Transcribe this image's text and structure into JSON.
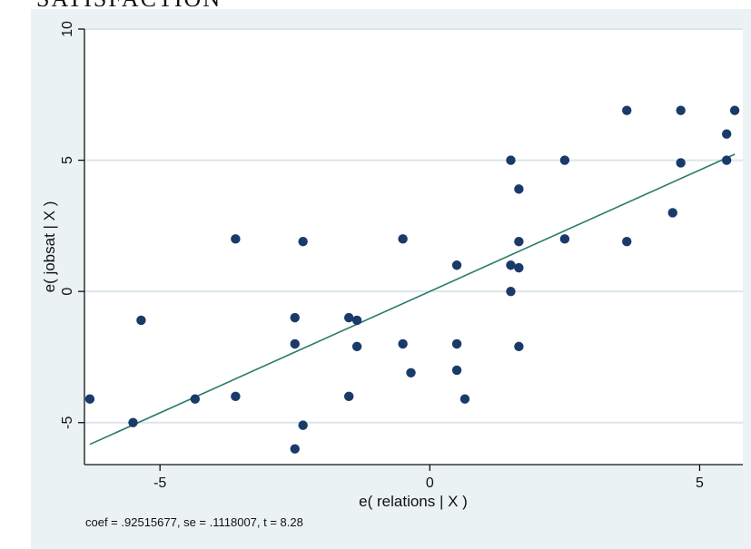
{
  "top_caption": "SATISFACTION",
  "note": "coef = .92515677, se = .1118007, t = 8.28",
  "colors": {
    "panel": "#eaf2f3",
    "plot_bg": "#ffffff",
    "grid": "#dce6ea",
    "marker": "#1a3a6a",
    "fit_line": "#2a7a68"
  },
  "chart_data": {
    "type": "scatter",
    "title": "",
    "xlabel": "e( relations | X )",
    "ylabel": "e( jobsat | X )",
    "xlim": [
      -6.4,
      5.8
    ],
    "ylim": [
      -6.6,
      10
    ],
    "x_ticks": [
      -5,
      0,
      5
    ],
    "y_ticks": [
      -5,
      0,
      5,
      10
    ],
    "x_tick_labels": [
      "-5",
      "0",
      "5"
    ],
    "y_tick_labels": [
      "-5",
      "0",
      "5",
      "10"
    ],
    "grid": "horizontal",
    "series": [
      {
        "points": [
          [
            -6.3,
            -4.1
          ],
          [
            -5.5,
            -5.0
          ],
          [
            -5.35,
            -1.1
          ],
          [
            -4.35,
            -4.1
          ],
          [
            -3.6,
            2.0
          ],
          [
            -3.6,
            -4.0
          ],
          [
            -2.5,
            -1.0
          ],
          [
            -2.5,
            -2.0
          ],
          [
            -2.5,
            -6.0
          ],
          [
            -2.35,
            1.9
          ],
          [
            -2.35,
            -5.1
          ],
          [
            -1.5,
            -1.0
          ],
          [
            -1.5,
            -4.0
          ],
          [
            -1.35,
            -1.1
          ],
          [
            -1.35,
            -2.1
          ],
          [
            -0.5,
            2.0
          ],
          [
            -0.5,
            -2.0
          ],
          [
            -0.35,
            -3.1
          ],
          [
            0.5,
            1.0
          ],
          [
            0.5,
            -2.0
          ],
          [
            0.5,
            -3.0
          ],
          [
            0.65,
            -4.1
          ],
          [
            1.5,
            5.0
          ],
          [
            1.5,
            1.0
          ],
          [
            1.5,
            0.0
          ],
          [
            1.65,
            3.9
          ],
          [
            1.65,
            1.9
          ],
          [
            1.65,
            0.9
          ],
          [
            1.65,
            -2.1
          ],
          [
            2.5,
            5.0
          ],
          [
            2.5,
            2.0
          ],
          [
            3.65,
            6.9
          ],
          [
            3.65,
            1.9
          ],
          [
            4.5,
            3.0
          ],
          [
            4.65,
            6.9
          ],
          [
            4.65,
            4.9
          ],
          [
            5.5,
            6.0
          ],
          [
            5.5,
            5.0
          ],
          [
            5.65,
            6.9
          ]
        ]
      }
    ],
    "fit_line": {
      "slope": 0.92515677,
      "intercept": 0,
      "x_range": [
        -6.3,
        5.65
      ]
    }
  }
}
